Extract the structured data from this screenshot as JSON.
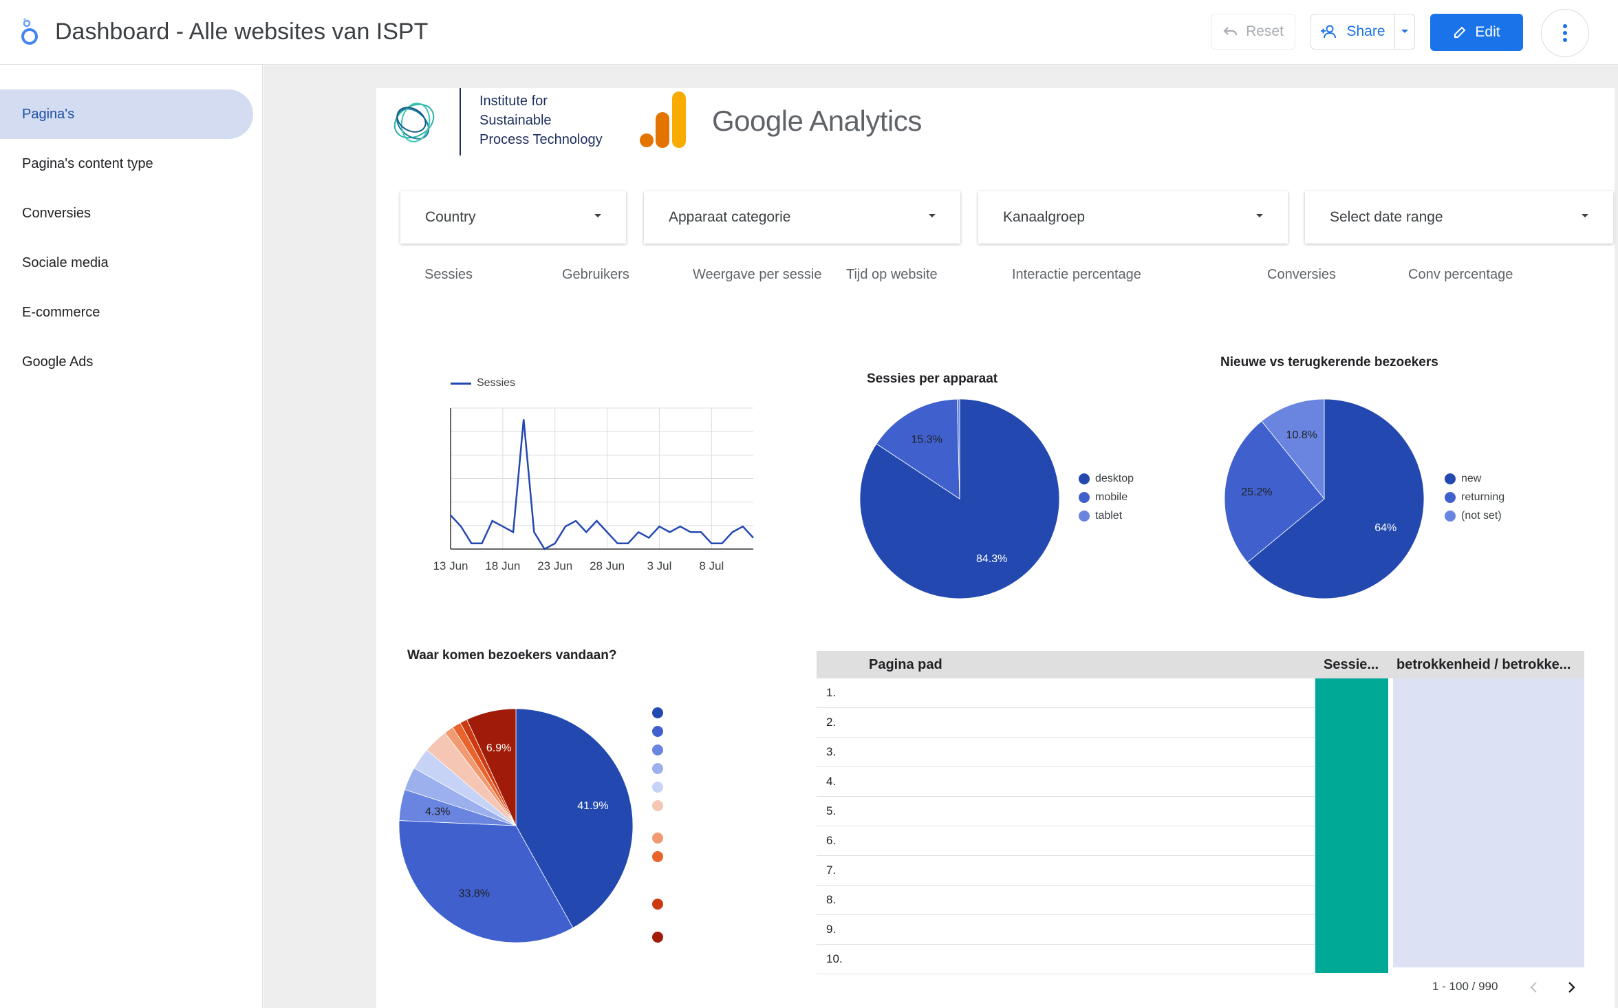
{
  "header": {
    "title": "Dashboard - Alle websites van ISPT",
    "reset_label": "Reset",
    "share_label": "Share",
    "edit_label": "Edit"
  },
  "sidebar": {
    "items": [
      {
        "label": "Pagina's",
        "active": true
      },
      {
        "label": "Pagina's content type",
        "active": false
      },
      {
        "label": "Conversies",
        "active": false
      },
      {
        "label": "Sociale media",
        "active": false
      },
      {
        "label": "E-commerce",
        "active": false
      },
      {
        "label": "Google Ads",
        "active": false
      }
    ]
  },
  "branding": {
    "org_name_line1": "Institute for",
    "org_name_line2": "Sustainable",
    "org_name_line3": "Process Technology",
    "ga_label": "Google Analytics"
  },
  "filters": [
    "Country",
    "Apparaat categorie",
    "Kanaalgroep",
    "Select date range"
  ],
  "metrics": [
    "Sessies",
    "Gebruikers",
    "Weergave per sessie",
    "Tijd op website",
    "Interactie percentage",
    "Conversies",
    "Conv percentage"
  ],
  "colors": {
    "accent": "#1a73e8",
    "pie_dark": "#2348b0",
    "pie_mid": "#4061cd",
    "pie_light": "#6a85e0",
    "table_bar": "#00a896",
    "table_bg": "#dce1f3"
  },
  "chart_data": [
    {
      "type": "line",
      "title": "",
      "series": [
        {
          "name": "Sessies",
          "values": [
            6,
            4,
            1,
            1,
            5,
            4,
            3,
            23,
            3,
            0,
            1,
            4,
            5,
            3,
            5,
            3,
            1,
            1,
            3,
            2,
            4,
            3,
            4,
            3,
            3,
            1,
            1,
            3,
            4,
            2
          ]
        }
      ],
      "x_ticks": [
        "13 Jun",
        "18 Jun",
        "23 Jun",
        "28 Jun",
        "3 Jul",
        "8 Jul"
      ],
      "grid": true,
      "legend": "top-left"
    },
    {
      "type": "pie",
      "title": "Sessies per apparaat",
      "categories": [
        "desktop",
        "mobile",
        "tablet"
      ],
      "values": [
        84.3,
        15.3,
        0.4
      ],
      "labels": [
        "84.3%",
        "15.3%",
        ""
      ],
      "legend": "right"
    },
    {
      "type": "pie",
      "title": "Nieuwe vs terugkerende bezoekers",
      "categories": [
        "new",
        "returning",
        "(not set)"
      ],
      "values": [
        64,
        25.2,
        10.8
      ],
      "labels": [
        "64%",
        "25.2%",
        "10.8%"
      ],
      "legend": "right"
    },
    {
      "type": "pie",
      "title": "Waar komen bezoekers vandaan?",
      "values": [
        41.9,
        33.8,
        4.3,
        3.2,
        3.0,
        3.4,
        1.3,
        1.2,
        1.0,
        6.9
      ],
      "labels": [
        "41.9%",
        "33.8%",
        "4.3%",
        "",
        "",
        "",
        "",
        "",
        "",
        "6.9%"
      ],
      "legend": "right"
    },
    {
      "type": "table",
      "columns": [
        "Pagina pad",
        "Sessie...",
        "betrokkenheid / betrokke..."
      ],
      "rows": [
        "1.",
        "2.",
        "3.",
        "4.",
        "5.",
        "6.",
        "7.",
        "8.",
        "9.",
        "10."
      ],
      "pagination": "1 - 100 / 990"
    }
  ]
}
